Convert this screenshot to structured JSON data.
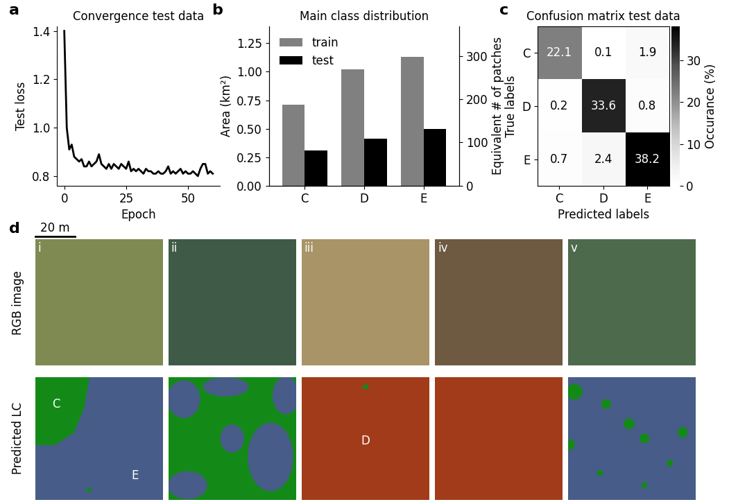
{
  "panel_labels": [
    "a",
    "b",
    "c",
    "d"
  ],
  "chart_data": [
    {
      "type": "line",
      "title": "Convergence test data",
      "x_label": "Epoch",
      "y_label": "Test loss",
      "x": [
        0,
        1,
        2,
        3,
        4,
        5,
        6,
        7,
        8,
        9,
        10,
        11,
        12,
        13,
        14,
        15,
        16,
        17,
        18,
        19,
        20,
        21,
        22,
        23,
        24,
        25,
        26,
        27,
        28,
        29,
        30,
        31,
        32,
        33,
        34,
        35,
        36,
        37,
        38,
        39,
        40,
        41,
        42,
        43,
        44,
        45,
        46,
        47,
        48,
        49,
        50,
        51,
        52,
        53,
        54,
        55,
        56,
        57,
        58,
        59,
        60
      ],
      "values": [
        1.4,
        1.0,
        0.91,
        0.93,
        0.88,
        0.87,
        0.86,
        0.87,
        0.84,
        0.84,
        0.86,
        0.84,
        0.85,
        0.86,
        0.89,
        0.85,
        0.84,
        0.83,
        0.85,
        0.83,
        0.85,
        0.84,
        0.83,
        0.85,
        0.84,
        0.83,
        0.86,
        0.82,
        0.83,
        0.82,
        0.83,
        0.82,
        0.81,
        0.83,
        0.82,
        0.82,
        0.81,
        0.81,
        0.82,
        0.81,
        0.81,
        0.82,
        0.84,
        0.81,
        0.82,
        0.81,
        0.82,
        0.83,
        0.81,
        0.82,
        0.81,
        0.81,
        0.82,
        0.81,
        0.8,
        0.83,
        0.85,
        0.85,
        0.81,
        0.82,
        0.81
      ],
      "color": "#000000",
      "xlim": [
        -3,
        63
      ],
      "xticks": [
        0,
        25,
        50
      ],
      "ylim": [
        0.76,
        1.42
      ],
      "yticks": [
        0.8,
        1.0,
        1.2,
        1.4
      ]
    },
    {
      "type": "bar",
      "title": "Main class distribution",
      "y_label": "Area (km²)",
      "y2_label": "Equivalent # of patches",
      "categories": [
        "C",
        "D",
        "E"
      ],
      "series": [
        {
          "name": "train",
          "color": "#808080",
          "values": [
            0.71,
            1.02,
            1.13
          ]
        },
        {
          "name": "test",
          "color": "#000000",
          "values": [
            0.31,
            0.41,
            0.5
          ]
        }
      ],
      "ylim": [
        0,
        1.4
      ],
      "yticks": [
        {
          "value": 0,
          "label": "0.00"
        },
        {
          "value": 0.25,
          "label": "0.25"
        },
        {
          "value": 0.5,
          "label": "0.50"
        },
        {
          "value": 0.75,
          "label": "0.75"
        },
        {
          "value": 1.0,
          "label": "1.00"
        },
        {
          "value": 1.25,
          "label": "1.25"
        }
      ],
      "y2lim": [
        0,
        369
      ],
      "y2ticks": [
        0,
        100,
        200,
        300
      ],
      "legend": "upper left"
    },
    {
      "type": "heatmap",
      "title": "Confusion matrix test data",
      "x_label": "Predicted labels",
      "y_label": "True labels",
      "x_categories": [
        "C",
        "D",
        "E"
      ],
      "y_categories": [
        "C",
        "D",
        "E"
      ],
      "cells": [
        [
          22.1,
          0.1,
          1.9
        ],
        [
          0.2,
          33.6,
          0.8
        ],
        [
          0.7,
          2.4,
          38.2
        ]
      ],
      "data_labels": true,
      "colorbar": {
        "label": "Occurance (%)",
        "range": [
          0,
          38.2
        ],
        "ticks": [
          0,
          10,
          20,
          30
        ]
      }
    }
  ],
  "panel_d": {
    "scale_bar": "20 m",
    "row_labels": [
      "RGB image",
      "Predicted LC"
    ],
    "class_colors": {
      "C": "#138a17",
      "D": "#a23b1a",
      "E": "#475c88"
    },
    "tiles": [
      {
        "label": "i",
        "color": "#7f8a52",
        "classes": [
          "E",
          "C"
        ],
        "class_labels": [
          "C",
          "E"
        ]
      },
      {
        "label": "ii",
        "color": "#3f5a46",
        "classes": [
          "C",
          "E"
        ],
        "class_labels": []
      },
      {
        "label": "iii",
        "color": "#a89466",
        "classes": [
          "D",
          "C"
        ],
        "class_labels": [
          "D"
        ]
      },
      {
        "label": "iv",
        "color": "#6e5a40",
        "classes": [
          "D"
        ],
        "class_labels": []
      },
      {
        "label": "v",
        "color": "#4e6a4c",
        "classes": [
          "E",
          "C"
        ],
        "class_labels": []
      }
    ]
  }
}
